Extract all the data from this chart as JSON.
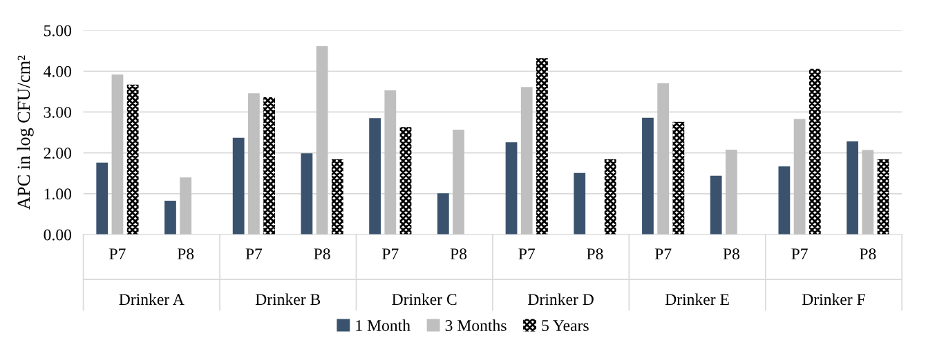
{
  "chart_data": {
    "type": "bar",
    "ylabel": "APC in log CFU/cm²",
    "categories": [
      "P7",
      "P8",
      "P7",
      "P8",
      "P7",
      "P8",
      "P7",
      "P8",
      "P7",
      "P8",
      "P7",
      "P8"
    ],
    "annotations": [
      "Drinker A",
      "Drinker B",
      "Drinker C",
      "Drinker D",
      "Drinker E",
      "Drinker F"
    ],
    "series": [
      {
        "name": "1 Month",
        "color": "#3a526d",
        "values": [
          1.76,
          0.83,
          2.37,
          1.99,
          2.85,
          1.01,
          2.26,
          1.51,
          2.86,
          1.44,
          1.67,
          2.28
        ]
      },
      {
        "name": "3 Months",
        "color": "#bfbfbf",
        "values": [
          3.92,
          1.4,
          3.46,
          4.61,
          3.53,
          2.57,
          3.61,
          null,
          3.71,
          2.08,
          2.83,
          2.07
        ]
      },
      {
        "name": "5 Years",
        "color": "#000000",
        "values": [
          3.67,
          null,
          3.36,
          1.84,
          2.63,
          null,
          4.32,
          1.84,
          2.76,
          null,
          4.06,
          1.84
        ]
      }
    ],
    "ylim": [
      0,
      5
    ],
    "yticks": [
      {
        "value": 0,
        "label": "0.00"
      },
      {
        "value": 1,
        "label": "1.00"
      },
      {
        "value": 2,
        "label": "2.00"
      },
      {
        "value": 3,
        "label": "3.00"
      },
      {
        "value": 4,
        "label": "4.00"
      },
      {
        "value": 5,
        "label": "5.00"
      }
    ],
    "grid": "y",
    "legend": "bottom"
  }
}
